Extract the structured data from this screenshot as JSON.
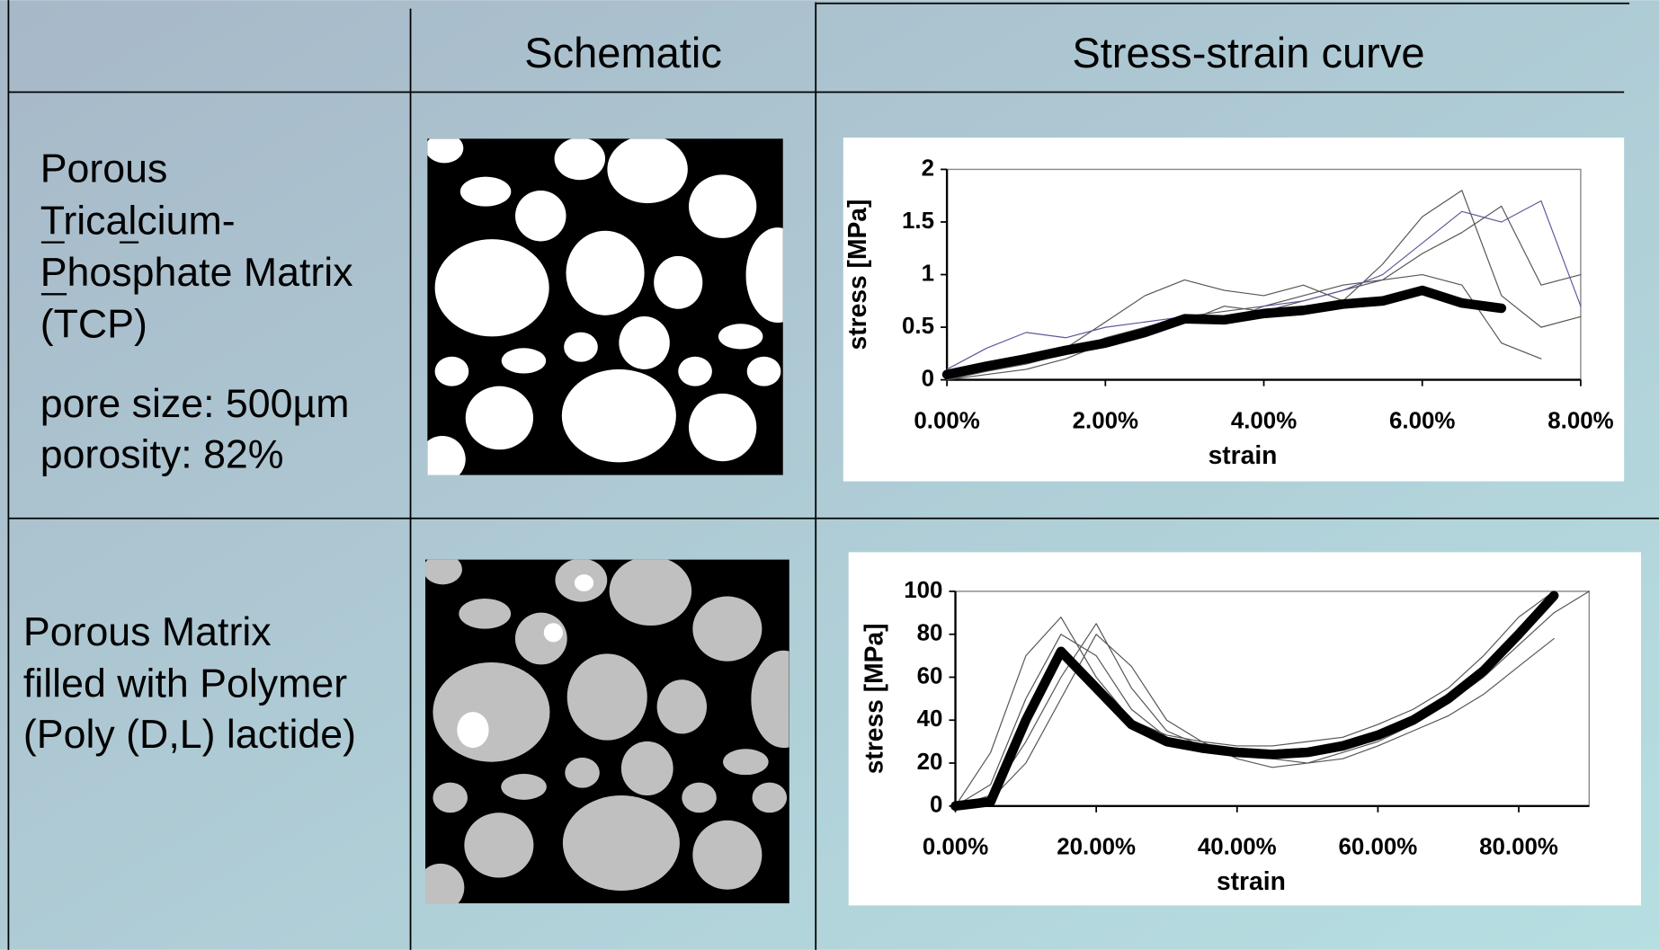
{
  "table": {
    "headers": [
      "Schematic",
      "Stress-strain curve"
    ],
    "rows": [
      {
        "label": [
          "Porous",
          "Tricalcium-",
          "Phosphate Matrix",
          "(TCP)"
        ],
        "details": [
          "pore size: 500µm",
          "porosity: 82%"
        ]
      },
      {
        "label": [
          "Porous Matrix",
          "filled with Polymer",
          "(Poly (D,L) lactide)"
        ]
      }
    ]
  },
  "chart_data": [
    {
      "type": "line",
      "x_label": "strain",
      "y_label": "stress [MPa]",
      "x": [
        0,
        0.005,
        0.01,
        0.015,
        0.02,
        0.025,
        0.03,
        0.035,
        0.04,
        0.045,
        0.05,
        0.055,
        0.06,
        0.065,
        0.07,
        0.075,
        0.08
      ],
      "xlim": [
        0,
        0.08
      ],
      "xticks": [
        {
          "value": 0,
          "label": "0.00%"
        },
        {
          "value": 0.02,
          "label": "2.00%"
        },
        {
          "value": 0.04,
          "label": "4.00%"
        },
        {
          "value": 0.06,
          "label": "6.00%"
        },
        {
          "value": 0.08,
          "label": "8.00%"
        }
      ],
      "ylim": [
        0,
        2
      ],
      "yticks": [
        0,
        0.5,
        1,
        1.5,
        2
      ],
      "series": [
        {
          "color": "#555555",
          "width": 1,
          "values": [
            0,
            0.1,
            0.2,
            0.3,
            0.55,
            0.8,
            0.95,
            0.85,
            0.8,
            0.9,
            0.75,
            1.1,
            1.55,
            1.8,
            0.8,
            0.5,
            0.6
          ]
        },
        {
          "color": "#555555",
          "width": 1,
          "values": [
            0,
            0.05,
            0.1,
            0.2,
            0.35,
            0.5,
            0.55,
            0.7,
            0.65,
            0.75,
            0.85,
            0.95,
            1.0,
            0.9,
            0.35,
            0.2,
            null
          ]
        },
        {
          "color": "#555555",
          "width": 1,
          "values": [
            0,
            0.08,
            0.15,
            0.25,
            0.4,
            0.5,
            0.6,
            0.65,
            0.7,
            0.8,
            0.9,
            0.95,
            1.2,
            1.4,
            1.65,
            0.9,
            1.0
          ]
        },
        {
          "color": "#5a5a9a",
          "width": 1,
          "values": [
            0.1,
            0.3,
            0.45,
            0.4,
            0.5,
            0.55,
            0.6,
            0.55,
            0.7,
            0.75,
            0.85,
            1.0,
            1.3,
            1.6,
            1.5,
            1.7,
            0.7
          ]
        },
        {
          "color": "#000000",
          "width": 9,
          "values": [
            0.05,
            0.13,
            0.2,
            0.28,
            0.35,
            0.45,
            0.58,
            0.57,
            0.63,
            0.66,
            0.72,
            0.75,
            0.85,
            0.73,
            0.68,
            null,
            null
          ]
        }
      ]
    },
    {
      "type": "line",
      "x_label": "strain",
      "y_label": "stress [MPa]",
      "x": [
        0,
        0.05,
        0.1,
        0.15,
        0.2,
        0.25,
        0.3,
        0.35,
        0.4,
        0.45,
        0.5,
        0.55,
        0.6,
        0.65,
        0.7,
        0.75,
        0.8,
        0.85,
        0.9
      ],
      "xlim": [
        0,
        0.9
      ],
      "xticks": [
        {
          "value": 0,
          "label": "0.00%"
        },
        {
          "value": 0.2,
          "label": "20.00%"
        },
        {
          "value": 0.4,
          "label": "40.00%"
        },
        {
          "value": 0.6,
          "label": "60.00%"
        },
        {
          "value": 0.8,
          "label": "80.00%"
        }
      ],
      "ylim": [
        0,
        100
      ],
      "yticks": [
        0,
        20,
        40,
        60,
        80,
        100
      ],
      "series": [
        {
          "color": "#555555",
          "width": 1,
          "values": [
            0,
            25,
            70,
            88,
            60,
            40,
            33,
            30,
            28,
            28,
            30,
            32,
            38,
            45,
            55,
            70,
            88,
            100,
            null
          ]
        },
        {
          "color": "#555555",
          "width": 1,
          "values": [
            0,
            5,
            30,
            60,
            85,
            55,
            35,
            28,
            25,
            22,
            20,
            25,
            30,
            38,
            48,
            60,
            75,
            90,
            100
          ]
        },
        {
          "color": "#555555",
          "width": 1,
          "values": [
            0,
            10,
            50,
            80,
            70,
            45,
            32,
            28,
            27,
            26,
            27,
            30,
            35,
            42,
            52,
            65,
            82,
            100,
            null
          ]
        },
        {
          "color": "#555555",
          "width": 1,
          "values": [
            0,
            3,
            20,
            50,
            80,
            65,
            40,
            30,
            22,
            18,
            20,
            22,
            28,
            35,
            42,
            52,
            65,
            78,
            null
          ]
        },
        {
          "color": "#000000",
          "width": 9,
          "values": [
            0,
            2,
            40,
            72,
            55,
            38,
            30,
            27,
            25,
            24,
            25,
            28,
            33,
            40,
            50,
            63,
            80,
            98,
            null
          ]
        }
      ]
    }
  ]
}
